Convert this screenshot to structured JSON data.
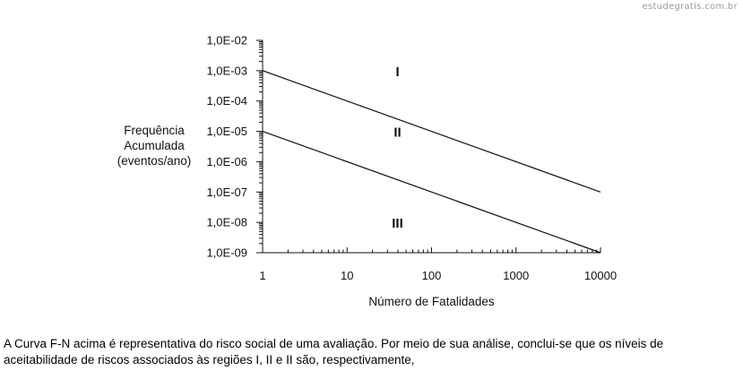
{
  "watermark": "estudegratis.com.br",
  "question": {
    "line1": "A Curva F-N acima é representativa do risco social de uma avaliação. Por meio de sua análise, conclui-se que os níveis de",
    "line2": "aceitabilidade de riscos associados às regiões I, II e II são, respectivamente,"
  },
  "chart_data": {
    "type": "line",
    "title": "",
    "xlabel": "Número de Fatalidades",
    "ylabel_lines": [
      "Frequência",
      "Acumulada",
      "(eventos/ano)"
    ],
    "x_scale": "log",
    "y_scale": "log",
    "xlim": [
      1,
      10000
    ],
    "ylim": [
      1e-09,
      0.01
    ],
    "x_ticks": [
      1,
      10,
      100,
      1000,
      10000
    ],
    "x_tick_labels": [
      "1",
      "10",
      "100",
      "1000",
      "10000"
    ],
    "y_ticks": [
      0.01,
      0.001,
      0.0001,
      1e-05,
      1e-06,
      1e-07,
      1e-08,
      1e-09
    ],
    "y_tick_labels": [
      "1,0E-02",
      "1,0E-03",
      "1,0E-04",
      "1,0E-05",
      "1,0E-06",
      "1,0E-07",
      "1,0E-08",
      "1,0E-09"
    ],
    "grid": false,
    "series": [
      {
        "x": [
          1,
          10000
        ],
        "y": [
          0.001,
          1e-07
        ]
      },
      {
        "x": [
          1,
          10000
        ],
        "y": [
          1e-05,
          1e-09
        ]
      }
    ],
    "annotations": [
      {
        "text": "I",
        "x": 35,
        "y": 0.001
      },
      {
        "text": "II",
        "x": 35,
        "y": 1e-05
      },
      {
        "text": "III",
        "x": 35,
        "y": 1e-08
      }
    ],
    "colors": {
      "line": "#111111",
      "axis": "#111111"
    }
  }
}
